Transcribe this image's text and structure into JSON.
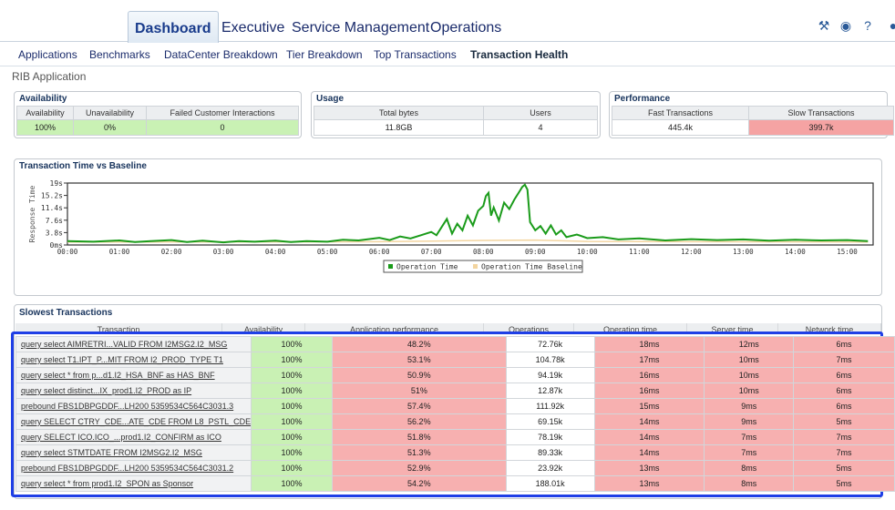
{
  "top_tabs": [
    "Dashboard",
    "Executive",
    "Service Management",
    "Operations"
  ],
  "sub_tabs": [
    "Applications",
    "Benchmarks",
    "DataCenter Breakdown",
    "Tier Breakdown",
    "Top Transactions",
    "Transaction Health"
  ],
  "app_title": "RIB Application",
  "availability": {
    "title": "Availability",
    "headers": [
      "Availability",
      "Unavailability",
      "Failed Customer Interactions"
    ],
    "values": [
      "100%",
      "0%",
      "0"
    ]
  },
  "usage": {
    "title": "Usage",
    "headers": [
      "Total bytes",
      "Users"
    ],
    "values": [
      "11.8GB",
      "4"
    ]
  },
  "performance": {
    "title": "Performance",
    "headers": [
      "Fast Transactions",
      "Slow Transactions"
    ],
    "values": [
      "445.4k",
      "399.7k"
    ]
  },
  "chart_data": {
    "type": "line",
    "title": "Transaction Time vs Baseline",
    "ylabel": "Response Time",
    "y_ticks": [
      "0ms",
      "3.8s",
      "7.6s",
      "11.4s",
      "15.2s",
      "19s"
    ],
    "ylim": [
      0,
      19
    ],
    "x_ticks": [
      "00:00",
      "01:00",
      "02:00",
      "03:00",
      "04:00",
      "05:00",
      "06:00",
      "07:00",
      "08:00",
      "09:00",
      "10:00",
      "11:00",
      "12:00",
      "13:00",
      "14:00",
      "15:00"
    ],
    "xlim": [
      0,
      15.5
    ],
    "legend_position": "bottom",
    "colors": {
      "operation": "#1a9b1a",
      "baseline": "#f3d5a0"
    },
    "series": [
      {
        "name": "Operation Time",
        "x": [
          0,
          0.5,
          1,
          1.3,
          1.6,
          2,
          2.3,
          2.6,
          3,
          3.3,
          3.6,
          4,
          4.3,
          4.6,
          5,
          5.3,
          5.6,
          6,
          6.2,
          6.4,
          6.6,
          6.8,
          7,
          7.1,
          7.2,
          7.3,
          7.4,
          7.5,
          7.6,
          7.7,
          7.8,
          7.9,
          8,
          8.05,
          8.1,
          8.15,
          8.2,
          8.3,
          8.4,
          8.5,
          8.6,
          8.7,
          8.75,
          8.8,
          8.85,
          8.9,
          9,
          9.1,
          9.2,
          9.3,
          9.4,
          9.5,
          9.6,
          9.8,
          10,
          10.3,
          10.6,
          11,
          11.5,
          12,
          12.5,
          13,
          13.5,
          14,
          14.5,
          15,
          15.4
        ],
        "values": [
          1.2,
          1.0,
          1.4,
          0.9,
          1.2,
          1.5,
          0.9,
          1.3,
          0.8,
          1.2,
          1.0,
          1.3,
          0.9,
          1.2,
          1.0,
          1.6,
          1.4,
          2.2,
          1.5,
          2.6,
          2.0,
          3.0,
          4.0,
          3.0,
          5.5,
          8.0,
          3.5,
          6.5,
          4.5,
          9.0,
          6.0,
          10.5,
          12.0,
          15.0,
          16.0,
          9.0,
          11.5,
          7.5,
          13.0,
          11.0,
          14.0,
          16.5,
          17.8,
          18.5,
          17.0,
          7.0,
          4.5,
          5.8,
          3.5,
          6.0,
          3.2,
          4.5,
          2.4,
          3.2,
          2.1,
          2.4,
          1.7,
          2.0,
          1.4,
          1.8,
          1.5,
          1.7,
          1.3,
          1.6,
          1.4,
          1.5,
          1.2
        ]
      },
      {
        "name": "Operation Time Baseline",
        "x": [
          0,
          6,
          7,
          8,
          9,
          10,
          15.4
        ],
        "values": [
          0.9,
          1.0,
          1.2,
          1.4,
          1.5,
          1.1,
          0.9
        ]
      }
    ]
  },
  "slowest": {
    "title": "Slowest Transactions",
    "headers": [
      "Transaction",
      "Availability",
      "Application performance",
      "Operations",
      "Operation time",
      "Server time",
      "Network time"
    ],
    "rows": [
      [
        "query select AIMRETRI...VALID FROM I2MSG2.I2_MSG",
        "100%",
        "48.2%",
        "72.76k",
        "18ms",
        "12ms",
        "6ms"
      ],
      [
        "query select T1.IPT_P...MIT FROM I2_PROD_TYPE T1",
        "100%",
        "53.1%",
        "104.78k",
        "17ms",
        "10ms",
        "7ms"
      ],
      [
        "query select * from p...d1.I2_HSA_BNF as HAS_BNF",
        "100%",
        "50.9%",
        "94.19k",
        "16ms",
        "10ms",
        "6ms"
      ],
      [
        "query select distinct...IX_prod1.I2_PROD as IP",
        "100%",
        "51%",
        "12.87k",
        "16ms",
        "10ms",
        "6ms"
      ],
      [
        "prebound FBS1DBPGDDF...LH200 5359534C564C3031.3",
        "100%",
        "57.4%",
        "111.92k",
        "15ms",
        "9ms",
        "6ms"
      ],
      [
        "query SELECT CTRY_CDE...ATE_CDE FROM L8_PSTL_CDE",
        "100%",
        "56.2%",
        "69.15k",
        "14ms",
        "9ms",
        "5ms"
      ],
      [
        "query SELECT ICO.ICO_...prod1.I2_CONFIRM as ICO",
        "100%",
        "51.8%",
        "78.19k",
        "14ms",
        "7ms",
        "7ms"
      ],
      [
        "query select STMTDATE FROM I2MSG2.I2_MSG",
        "100%",
        "51.3%",
        "89.33k",
        "14ms",
        "7ms",
        "7ms"
      ],
      [
        "prebound FBS1DBPGDDF...LH200 5359534C564C3031.2",
        "100%",
        "52.9%",
        "23.92k",
        "13ms",
        "8ms",
        "5ms"
      ],
      [
        "query select * from prod1.I2_SPON as Sponsor",
        "100%",
        "54.2%",
        "188.01k",
        "13ms",
        "8ms",
        "5ms"
      ]
    ]
  }
}
